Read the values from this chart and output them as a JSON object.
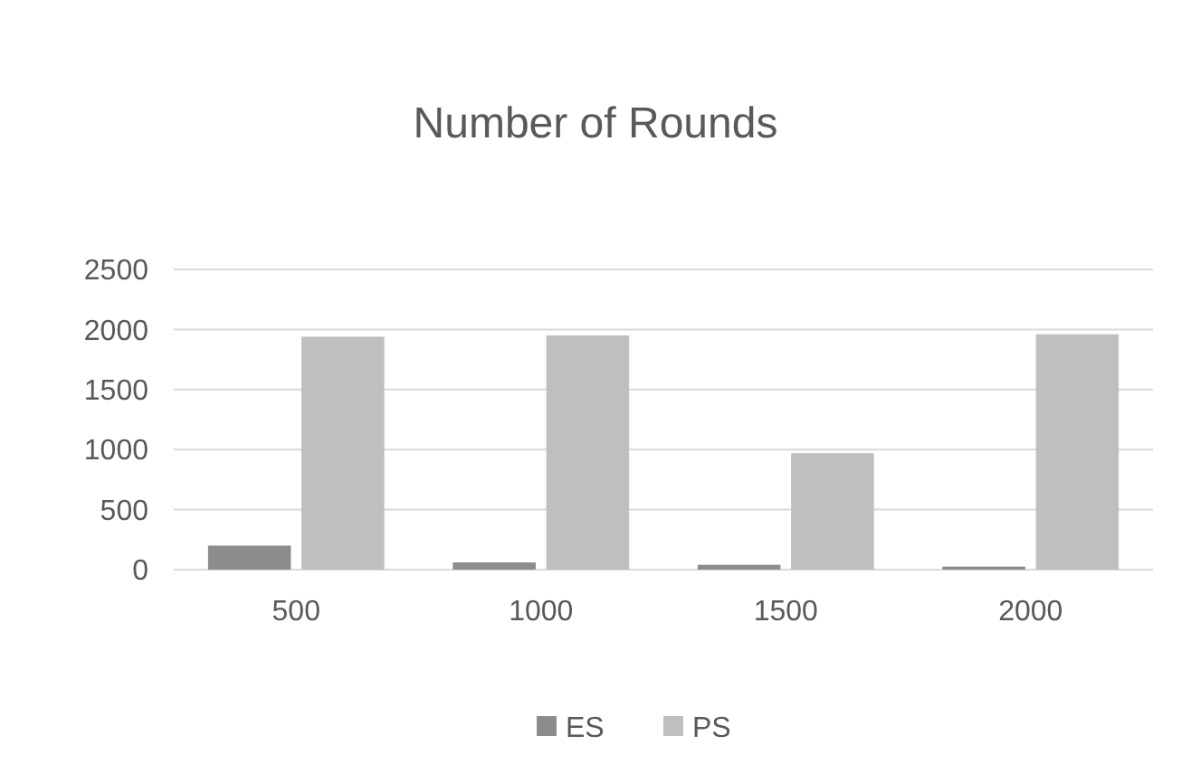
{
  "chart_data": {
    "type": "bar",
    "title": "Number of Rounds",
    "categories": [
      "500",
      "1000",
      "1500",
      "2000"
    ],
    "series": [
      {
        "name": "ES",
        "color": "#8c8c8c",
        "values": [
          200,
          60,
          40,
          25
        ]
      },
      {
        "name": "PS",
        "color": "#bfbfbf",
        "values": [
          1940,
          1950,
          970,
          1960
        ]
      }
    ],
    "ylim": [
      0,
      2500
    ],
    "yticks": [
      0,
      500,
      1000,
      1500,
      2000,
      2500
    ],
    "grid": "y",
    "legend": "bottom"
  }
}
